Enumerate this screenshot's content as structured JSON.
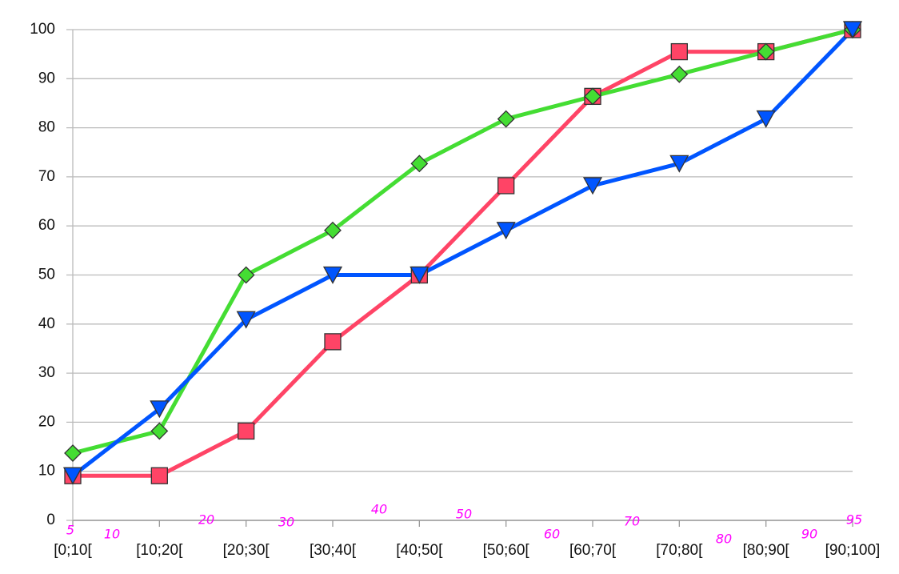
{
  "chart_data": {
    "type": "line",
    "categories": [
      "[0;10[",
      "[10;20[",
      "[20;30[",
      "[30;40[",
      "[40;50[",
      "[50;60[",
      "[60;70[",
      "[70;80[",
      "[80;90[",
      "[90;100]"
    ],
    "series": [
      {
        "color": "#ff4466",
        "marker": "square",
        "values": [
          9.1,
          9.1,
          18.2,
          36.4,
          50,
          68.2,
          86.4,
          95.5,
          95.5,
          100
        ]
      },
      {
        "color": "#44dd33",
        "marker": "diamond",
        "values": [
          13.7,
          18.2,
          50,
          59.1,
          72.7,
          81.8,
          86.4,
          90.9,
          95.5,
          100
        ]
      },
      {
        "color": "#0055ff",
        "marker": "triangle",
        "values": [
          9.1,
          22.7,
          40.9,
          50,
          50,
          59.1,
          68.2,
          72.7,
          81.8,
          100
        ]
      }
    ],
    "ylim": [
      0,
      100
    ],
    "yticks": [
      0,
      10,
      20,
      30,
      40,
      50,
      60,
      70,
      80,
      90,
      100
    ],
    "grid": true,
    "annotations": [
      "5",
      "10",
      "20",
      "30",
      "40",
      "50",
      "60",
      "70",
      "80",
      "90",
      "95"
    ]
  }
}
